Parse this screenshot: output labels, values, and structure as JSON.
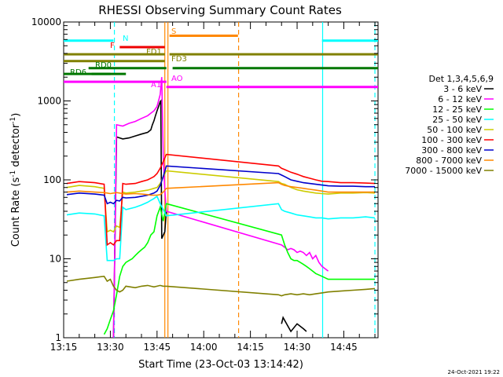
{
  "chart_data": {
    "type": "line",
    "title": "RHESSI Observing Summary Count Rates",
    "xlabel": "Start Time (23-Oct-03 13:14:42)",
    "ylabel": "Count Rate (s",
    "ylabel_sup1": "-1",
    "ylabel_mid": " detector",
    "ylabel_sup2": "-1",
    "ylabel_end": ")",
    "footer_date": "24-Oct-2021 19:22",
    "x_ticks": [
      "13:15",
      "13:30",
      "13:45",
      "14:00",
      "14:15",
      "14:30",
      "14:45"
    ],
    "x_tick_minutes": [
      795,
      810,
      825,
      840,
      855,
      870,
      885
    ],
    "xlim_minutes": [
      795,
      896
    ],
    "y_ticks": [
      "1",
      "10",
      "100",
      "1000",
      "10000"
    ],
    "y_tick_values": [
      1,
      10,
      100,
      1000,
      10000
    ],
    "ylim": [
      1,
      10000
    ],
    "yscale": "log",
    "legend_title": "Det 1,3,4,5,6,9",
    "legend_position": "right",
    "series": [
      {
        "name": "3 - 6 keV",
        "color": "#000000",
        "x": [
          811,
          812,
          814,
          816,
          818,
          820,
          822,
          823,
          823.5,
          824,
          824.5,
          825,
          825.5,
          826,
          826.2,
          826.5,
          827.5,
          828,
          840,
          860,
          865,
          865.5,
          868,
          870,
          872,
          873
        ],
        "y": [
          1,
          350,
          330,
          340,
          360,
          380,
          400,
          430,
          500,
          560,
          650,
          750,
          850,
          980,
          1000,
          18,
          22,
          40,
          null,
          null,
          1.5,
          1.8,
          1.2,
          1.5,
          1.3,
          1.2
        ]
      },
      {
        "name": "6 - 12 keV",
        "color": "#ff00ff",
        "x": [
          811,
          812,
          814,
          816,
          818,
          820,
          822,
          823,
          824,
          825,
          826,
          826.5,
          827,
          827.5,
          828,
          865,
          866,
          867,
          868,
          869,
          870,
          871,
          872,
          873,
          874,
          875,
          876,
          877,
          878,
          880
        ],
        "y": [
          1,
          500,
          480,
          520,
          550,
          600,
          650,
          700,
          750,
          850,
          1200,
          2000,
          200,
          75,
          40,
          15,
          14,
          13,
          13.5,
          13,
          12,
          12.5,
          12,
          11,
          12,
          10,
          11,
          9,
          8,
          7
        ]
      },
      {
        "name": "12 - 25 keV",
        "color": "#00ff00",
        "x": [
          808,
          809,
          810,
          811,
          812,
          813,
          814,
          815,
          816,
          817,
          818,
          819,
          820,
          821,
          822,
          823,
          824,
          825,
          826,
          827,
          828,
          865,
          866,
          867,
          868,
          869,
          870,
          871,
          872,
          873,
          874,
          876,
          878,
          880,
          884,
          890,
          895
        ],
        "y": [
          1.1,
          1.3,
          1.7,
          2.2,
          3.5,
          6,
          8,
          9,
          9.5,
          10,
          11,
          12,
          13,
          14,
          16,
          20,
          22,
          35,
          45,
          30,
          50,
          20,
          15,
          12,
          10,
          9.5,
          9.5,
          9,
          8.5,
          8,
          7.5,
          6.5,
          6,
          5.5,
          5.5,
          5.5,
          5.5
        ]
      },
      {
        "name": "25 - 50 keV",
        "color": "#00ffff",
        "x": [
          796,
          800,
          805,
          808,
          809,
          810,
          811,
          812,
          813,
          814,
          815,
          818,
          820,
          822,
          823,
          824,
          825,
          826,
          827,
          828,
          864,
          865,
          866,
          868,
          870,
          872,
          874,
          876,
          878,
          880,
          884,
          888,
          892,
          895
        ],
        "y": [
          36,
          38,
          37,
          35,
          9.5,
          9.5,
          9.5,
          10,
          10,
          45,
          42,
          45,
          48,
          52,
          55,
          58,
          62,
          50,
          42,
          35,
          50,
          42,
          40,
          38,
          36,
          35,
          34,
          33,
          33,
          32,
          33,
          33,
          34,
          33
        ]
      },
      {
        "name": "50 - 100 keV",
        "color": "#cccc00",
        "x": [
          796,
          800,
          805,
          808,
          809,
          810,
          811,
          812,
          813,
          814,
          815,
          818,
          820,
          822,
          823,
          824,
          825,
          826,
          827,
          828,
          864,
          865,
          866,
          868,
          870,
          872,
          874,
          876,
          878,
          880,
          884,
          888,
          892,
          895
        ],
        "y": [
          80,
          85,
          82,
          78,
          22,
          23,
          22,
          26,
          25,
          70,
          68,
          70,
          72,
          74,
          76,
          78,
          80,
          90,
          110,
          130,
          95,
          90,
          88,
          80,
          75,
          72,
          70,
          68,
          67,
          66,
          68,
          68,
          69,
          68
        ]
      },
      {
        "name": "100 - 300 keV",
        "color": "#ff0000",
        "x": [
          796,
          800,
          805,
          808,
          809,
          810,
          811,
          812,
          813,
          814,
          815,
          818,
          820,
          822,
          823,
          824,
          825,
          826,
          827,
          828,
          864,
          865,
          866,
          868,
          870,
          872,
          874,
          876,
          878,
          880,
          884,
          888,
          892,
          895
        ],
        "y": [
          90,
          95,
          92,
          88,
          15,
          16,
          15,
          17,
          17,
          90,
          88,
          90,
          95,
          100,
          105,
          110,
          120,
          140,
          170,
          210,
          150,
          140,
          135,
          125,
          118,
          110,
          105,
          100,
          96,
          95,
          92,
          92,
          91,
          90
        ]
      },
      {
        "name": "300 - 800 keV",
        "color": "#0000cc",
        "x": [
          796,
          800,
          805,
          808,
          809,
          810,
          811,
          812,
          813,
          814,
          815,
          818,
          820,
          822,
          823,
          824,
          825,
          826,
          827,
          828,
          864,
          865,
          866,
          868,
          870,
          872,
          874,
          876,
          878,
          880,
          884,
          888,
          892,
          895
        ],
        "y": [
          65,
          68,
          66,
          64,
          50,
          52,
          50,
          55,
          54,
          60,
          59,
          60,
          62,
          64,
          66,
          68,
          72,
          85,
          110,
          150,
          120,
          115,
          110,
          100,
          96,
          92,
          90,
          88,
          86,
          84,
          83,
          83,
          82,
          82
        ]
      },
      {
        "name": "800 - 7000 keV",
        "color": "#ff8800",
        "x": [
          796,
          800,
          805,
          808,
          809,
          810,
          811,
          812,
          813,
          814,
          815,
          818,
          820,
          822,
          823,
          824,
          825,
          826,
          827,
          828,
          864,
          865,
          866,
          868,
          870,
          872,
          874,
          876,
          878,
          880,
          884,
          888,
          892,
          895
        ],
        "y": [
          70,
          72,
          70,
          69,
          68,
          67,
          68,
          69,
          68,
          67,
          66,
          67,
          66,
          65,
          64,
          64,
          64,
          65,
          70,
          78,
          92,
          88,
          85,
          82,
          80,
          78,
          76,
          74,
          72,
          70,
          70,
          70,
          70,
          70
        ]
      },
      {
        "name": "7000 - 15000 keV",
        "color": "#808000",
        "x": [
          796,
          800,
          805,
          808,
          809,
          810,
          811,
          812,
          813,
          814,
          815,
          818,
          820,
          822,
          823,
          824,
          825,
          826,
          827,
          828,
          864,
          865,
          866,
          868,
          870,
          872,
          874,
          876,
          878,
          880,
          884,
          888,
          892,
          895
        ],
        "y": [
          5.2,
          5.5,
          5.8,
          6,
          5.2,
          5.5,
          4.5,
          4,
          3.8,
          4,
          4.5,
          4.3,
          4.5,
          4.6,
          4.5,
          4.4,
          4.5,
          4.6,
          4.5,
          4.5,
          3.5,
          3.4,
          3.5,
          3.6,
          3.5,
          3.6,
          3.5,
          3.6,
          3.7,
          3.8,
          3.9,
          4,
          4.1,
          4.2
        ]
      }
    ],
    "flag_bars": [
      {
        "label": "N",
        "color": "#00ffff",
        "segments": [
          [
            795,
            811
          ],
          [
            878,
            896
          ]
        ],
        "y": 5800
      },
      {
        "label": "S",
        "color": "#ff8800",
        "segments": [
          [
            829,
            851
          ]
        ],
        "y": 6700
      },
      {
        "label": "F",
        "color": "#ee0000",
        "segments": [
          [
            813,
            827.5
          ]
        ],
        "y": 4800
      },
      {
        "label": "FD1",
        "color": "#808000",
        "segments": [
          [
            795,
            827.5
          ],
          [
            829,
            896
          ]
        ],
        "y": 3900
      },
      {
        "label": "FD3",
        "color": "#808000",
        "segments": [
          [
            795,
            827.5
          ]
        ],
        "y": 3200
      },
      {
        "label": "RD0",
        "color": "#007700",
        "segments": [
          [
            803,
            828
          ],
          [
            830,
            896
          ]
        ],
        "y": 2600
      },
      {
        "label": "RD6",
        "color": "#007700",
        "segments": [
          [
            795,
            810
          ],
          [
            804,
            815
          ]
        ],
        "y": 2200
      },
      {
        "label": "AO",
        "color": "#ff00ff",
        "segments": [
          [
            795,
            828
          ]
        ],
        "y": 1750
      },
      {
        "label": "A1",
        "color": "#ff00ff",
        "segments": [
          [
            828,
            896
          ]
        ],
        "y": 1500
      }
    ],
    "vertical_lines": [
      {
        "x": 811.3,
        "color": "#00ffff",
        "style": "dashed"
      },
      {
        "x": 827.5,
        "color": "#ff8800",
        "style": "solid"
      },
      {
        "x": 828.5,
        "color": "#ff8800",
        "style": "solid"
      },
      {
        "x": 851.2,
        "color": "#ff8800",
        "style": "dashed"
      },
      {
        "x": 878.2,
        "color": "#00ffff",
        "style": "solid"
      },
      {
        "x": 895,
        "color": "#00ffff",
        "style": "dashed"
      }
    ]
  }
}
